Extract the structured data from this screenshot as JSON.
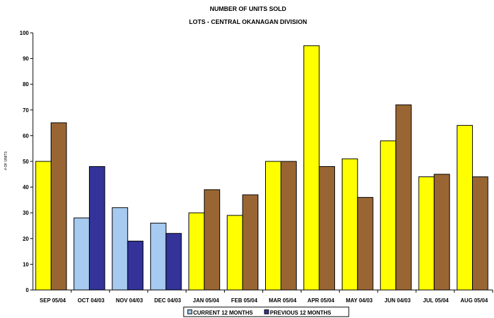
{
  "chart_data": {
    "type": "bar",
    "title": "NUMBER OF UNITS SOLD",
    "subtitle": "LOTS - CENTRAL OKANAGAN DIVISION",
    "ylabel": "# OF UNITS",
    "xlabel": "",
    "ylim": [
      0,
      100
    ],
    "yticks": [
      0,
      10,
      20,
      30,
      40,
      50,
      60,
      70,
      80,
      90,
      100
    ],
    "grid": false,
    "legend_position": "bottom",
    "categories": [
      "SEP 05/04",
      "OCT 04/03",
      "NOV 04/03",
      "DEC 04/03",
      "JAN 05/04",
      "FEB 05/04",
      "MAR 05/04",
      "APR 05/04",
      "MAY 04/03",
      "JUN 04/03",
      "JUL 05/04",
      "AUG 05/04"
    ],
    "series": [
      {
        "name": "CURRENT 12 MONTHS",
        "legend_color": "#A6CAF0",
        "values": [
          50,
          28,
          32,
          26,
          30,
          29,
          50,
          95,
          51,
          58,
          44,
          64
        ],
        "colors": [
          "#FFFF00",
          "#A6CAF0",
          "#A6CAF0",
          "#A6CAF0",
          "#FFFF00",
          "#FFFF00",
          "#FFFF00",
          "#FFFF00",
          "#FFFF00",
          "#FFFF00",
          "#FFFF00",
          "#FFFF00"
        ]
      },
      {
        "name": "PREVIOUS 12 MONTHS",
        "legend_color": "#333399",
        "values": [
          65,
          48,
          19,
          22,
          39,
          37,
          50,
          48,
          36,
          72,
          45,
          44
        ],
        "colors": [
          "#996633",
          "#333399",
          "#333399",
          "#333399",
          "#996633",
          "#996633",
          "#996633",
          "#996633",
          "#996633",
          "#996633",
          "#996633",
          "#996633"
        ]
      }
    ]
  }
}
